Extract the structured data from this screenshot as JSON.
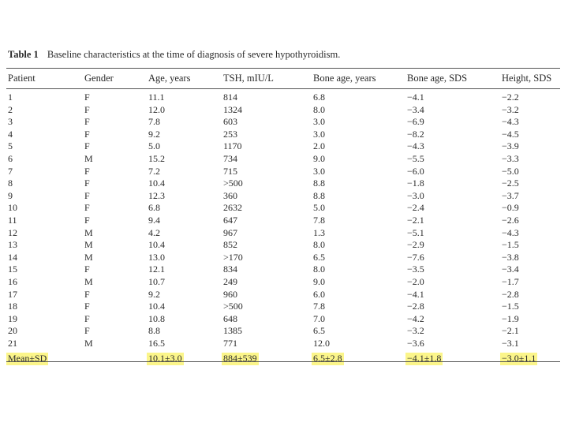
{
  "caption": {
    "label": "Table 1",
    "text": "Baseline characteristics at the time of diagnosis of severe hypothyroidism."
  },
  "columns": [
    "Patient",
    "Gender",
    "Age, years",
    "TSH, mIU/L",
    "Bone age, years",
    "Bone age, SDS",
    "Height, SDS"
  ],
  "rows": [
    [
      "1",
      "F",
      "11.1",
      "814",
      "6.8",
      "−4.1",
      "−2.2"
    ],
    [
      "2",
      "F",
      "12.0",
      "1324",
      "8.0",
      "−3.4",
      "−3.2"
    ],
    [
      "3",
      "F",
      "7.8",
      "603",
      "3.0",
      "−6.9",
      "−4.3"
    ],
    [
      "4",
      "F",
      "9.2",
      "253",
      "3.0",
      "−8.2",
      "−4.5"
    ],
    [
      "5",
      "F",
      "5.0",
      "1170",
      "2.0",
      "−4.3",
      "−3.9"
    ],
    [
      "6",
      "M",
      "15.2",
      "734",
      "9.0",
      "−5.5",
      "−3.3"
    ],
    [
      "7",
      "F",
      "7.2",
      "715",
      "3.0",
      "−6.0",
      "−5.0"
    ],
    [
      "8",
      "F",
      "10.4",
      ">500",
      "8.8",
      "−1.8",
      "−2.5"
    ],
    [
      "9",
      "F",
      "12.3",
      "360",
      "8.8",
      "−3.0",
      "−3.7"
    ],
    [
      "10",
      "F",
      "6.8",
      "2632",
      "5.0",
      "−2.4",
      "−0.9"
    ],
    [
      "11",
      "F",
      "9.4",
      "647",
      "7.8",
      "−2.1",
      "−2.6"
    ],
    [
      "12",
      "M",
      "4.2",
      "967",
      "1.3",
      "−5.1",
      "−4.3"
    ],
    [
      "13",
      "M",
      "10.4",
      "852",
      "8.0",
      "−2.9",
      "−1.5"
    ],
    [
      "14",
      "M",
      "13.0",
      ">170",
      "6.5",
      "−7.6",
      "−3.8"
    ],
    [
      "15",
      "F",
      "12.1",
      "834",
      "8.0",
      "−3.5",
      "−3.4"
    ],
    [
      "16",
      "M",
      "10.7",
      "249",
      "9.0",
      "−2.0",
      "−1.7"
    ],
    [
      "17",
      "F",
      "9.2",
      "960",
      "6.0",
      "−4.1",
      "−2.8"
    ],
    [
      "18",
      "F",
      "10.4",
      ">500",
      "7.8",
      "−2.8",
      "−1.5"
    ],
    [
      "19",
      "F",
      "10.8",
      "648",
      "7.0",
      "−4.2",
      "−1.9"
    ],
    [
      "20",
      "F",
      "8.8",
      "1385",
      "6.5",
      "−3.2",
      "−2.1"
    ],
    [
      "21",
      "M",
      "16.5",
      "771",
      "12.0",
      "−3.6",
      "−3.1"
    ]
  ],
  "summary": [
    "Mean±SD",
    "",
    "10.1±3.0",
    "884±539",
    "6.5±2.8",
    "−4.1±1.8",
    "−3.0±1.1"
  ],
  "highlight_color": "#fbf58a"
}
